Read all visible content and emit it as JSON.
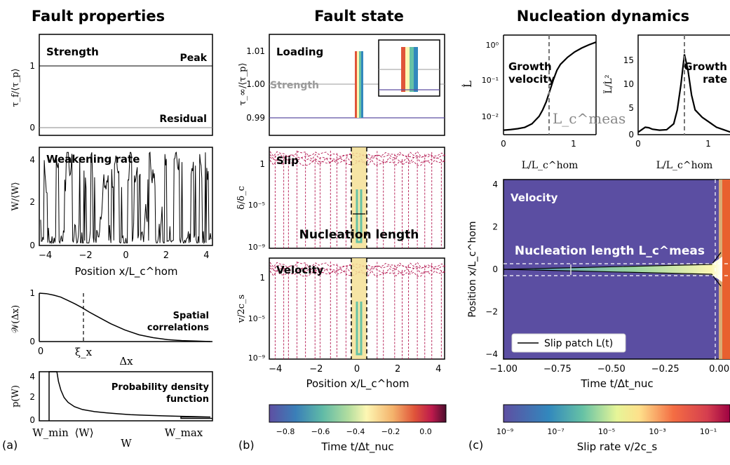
{
  "headers": {
    "a": "Fault properties",
    "b": "Fault state",
    "c": "Nucleation dynamics"
  },
  "panel_letters": [
    "(a)",
    "(b)",
    "(c)"
  ],
  "colors": {
    "curve": "#000000",
    "strength_line": "#9a9a9a",
    "slip_contours": "#b3164f",
    "nucleation_band": "#f5e195",
    "heatmap_bg": "#5b4ea2",
    "dashed": "#ffffff"
  },
  "chart_data": [
    {
      "type": "line",
      "title": "Strength",
      "ylabel": "τ_f/⟨τ_p⟩",
      "x": [
        -4.3,
        4.3
      ],
      "ylim": [
        -0.1,
        1.35
      ],
      "yticks": [
        0,
        1
      ],
      "annotations": [
        "Peak",
        "Residual"
      ],
      "series": [
        {
          "name": "Peak",
          "values": [
            1,
            1
          ]
        },
        {
          "name": "Residual",
          "values": [
            0,
            0
          ]
        }
      ]
    },
    {
      "type": "line",
      "title": "Weakening rate",
      "xlabel": "Position x/L_c^hom",
      "ylabel": "W/⟨W⟩",
      "xlim": [
        -4.3,
        4.3
      ],
      "ylim": [
        0,
        4.2
      ],
      "xticks": [
        -4,
        -2,
        0,
        2,
        4
      ],
      "yticks": [
        0,
        2,
        4
      ]
    },
    {
      "type": "line",
      "title": "Spatial correlations",
      "xlabel": "Δx",
      "ylabel": "𝒲(Δx)",
      "ylim": [
        0,
        1.05
      ],
      "yticks": [
        0,
        1
      ],
      "xtick_labels": [
        "0",
        "ξ_x"
      ],
      "x": [
        0,
        0.1,
        0.2,
        0.3,
        0.4,
        0.5,
        0.6,
        0.7,
        0.8,
        0.9,
        1.0,
        1.2,
        1.4,
        1.6,
        1.8,
        2.0,
        2.2,
        2.4
      ],
      "values": [
        1.0,
        0.99,
        0.96,
        0.92,
        0.85,
        0.78,
        0.7,
        0.61,
        0.53,
        0.45,
        0.37,
        0.24,
        0.14,
        0.08,
        0.04,
        0.02,
        0.01,
        0.0
      ]
    },
    {
      "type": "line",
      "title": "Probability density function",
      "xlabel": "W",
      "ylabel": "p(W)",
      "ylim": [
        0,
        4
      ],
      "yticks": [
        0,
        2,
        4
      ],
      "xtick_labels": [
        "W_min",
        "⟨W⟩",
        "W_max"
      ],
      "x": [
        0.08,
        0.1,
        0.13,
        0.17,
        0.22,
        0.3,
        0.4,
        0.55,
        0.7,
        0.85,
        1.0,
        1.2,
        1.4,
        1.6,
        1.8,
        2.0
      ],
      "values": [
        4.0,
        3.2,
        2.5,
        1.9,
        1.5,
        1.15,
        0.92,
        0.75,
        0.65,
        0.57,
        0.5,
        0.45,
        0.41,
        0.37,
        0.34,
        0.31
      ]
    },
    {
      "type": "line",
      "title": "Loading",
      "ylabel": "τ_∞/⟨τ_p⟩",
      "xlim": [
        -4.3,
        4.3
      ],
      "ylim": [
        0.985,
        1.015
      ],
      "yticks": [
        0.99,
        1.0,
        1.01
      ],
      "ytick_labels": [
        "0.99",
        "1.00",
        "1.01"
      ],
      "annotations": [
        "Strength"
      ],
      "series": [
        {
          "name": "Strength",
          "values": [
            1.0,
            1.0
          ]
        }
      ]
    },
    {
      "type": "line",
      "title": "Slip",
      "ylabel": "δ/δ_c",
      "yscale": "log",
      "ytick_labels": [
        "1",
        "10⁻⁵",
        "10⁻⁹"
      ],
      "annotations": [
        "Nucleation length"
      ]
    },
    {
      "type": "line",
      "title": "Velocity",
      "xlabel": "Position x/L_c^hom",
      "ylabel": "v/2c_s",
      "yscale": "log",
      "xticks": [
        -4,
        -2,
        0,
        2,
        4
      ],
      "ytick_labels": [
        "1",
        "10⁻⁵",
        "10⁻⁹"
      ]
    },
    {
      "type": "line",
      "title": "Growth velocity",
      "xlabel": "L/L_c^hom",
      "ylabel": "L̇",
      "yscale": "log",
      "xticks": [
        0,
        1
      ],
      "ytick_labels": [
        "10⁰",
        "10⁻¹",
        "10⁻²"
      ],
      "annotations": [
        "L_c^meas"
      ],
      "x": [
        0,
        0.1,
        0.2,
        0.3,
        0.4,
        0.5,
        0.55,
        0.6,
        0.65,
        0.7,
        0.75,
        0.8,
        0.9,
        1.0,
        1.1,
        1.2,
        1.3
      ],
      "values": [
        0.005,
        0.0052,
        0.0055,
        0.006,
        0.0075,
        0.012,
        0.018,
        0.03,
        0.06,
        0.12,
        0.22,
        0.32,
        0.5,
        0.7,
        0.9,
        1.1,
        1.3
      ]
    },
    {
      "type": "line",
      "title": "Growth rate",
      "xlabel": "L/L_c^hom",
      "ylabel": "L̈/L̇²",
      "xticks": [
        0,
        1
      ],
      "yticks": [
        0,
        5,
        10,
        15
      ],
      "annotations": [],
      "x": [
        0,
        0.05,
        0.1,
        0.15,
        0.2,
        0.3,
        0.4,
        0.5,
        0.55,
        0.6,
        0.65,
        0.7,
        0.75,
        0.8,
        0.9,
        1.0,
        1.1,
        1.2,
        1.3
      ],
      "values": [
        0.5,
        1.0,
        1.5,
        1.4,
        1.1,
        0.9,
        1.0,
        2.2,
        5.0,
        10.0,
        16.2,
        13.0,
        8.0,
        5.0,
        3.5,
        2.5,
        1.5,
        1.0,
        0.5
      ]
    },
    {
      "type": "heatmap",
      "title": "Velocity",
      "xlabel": "Time t/Δt_nuc",
      "ylabel": "Position x/L_c^hom",
      "xticks": [
        -1.0,
        -0.75,
        -0.5,
        -0.25,
        0.0
      ],
      "xtick_labels": [
        "−1.00",
        "−0.75",
        "−0.50",
        "−0.25",
        "0.00"
      ],
      "yticks": [
        -4,
        -2,
        0,
        2,
        4
      ],
      "annotations": [
        "Nucleation length L_c^meas"
      ],
      "legend": [
        "Slip patch L(t)"
      ]
    },
    {
      "type": "colorbar",
      "title": "Time t/Δt_nuc",
      "ticks": [
        "−0.8",
        "−0.6",
        "−0.4",
        "−0.2",
        "0.0"
      ]
    },
    {
      "type": "colorbar",
      "title": "Slip rate v/2c_s",
      "ticks": [
        "10⁻⁹",
        "10⁻⁷",
        "10⁻⁵",
        "10⁻³",
        "10⁻¹"
      ]
    }
  ]
}
